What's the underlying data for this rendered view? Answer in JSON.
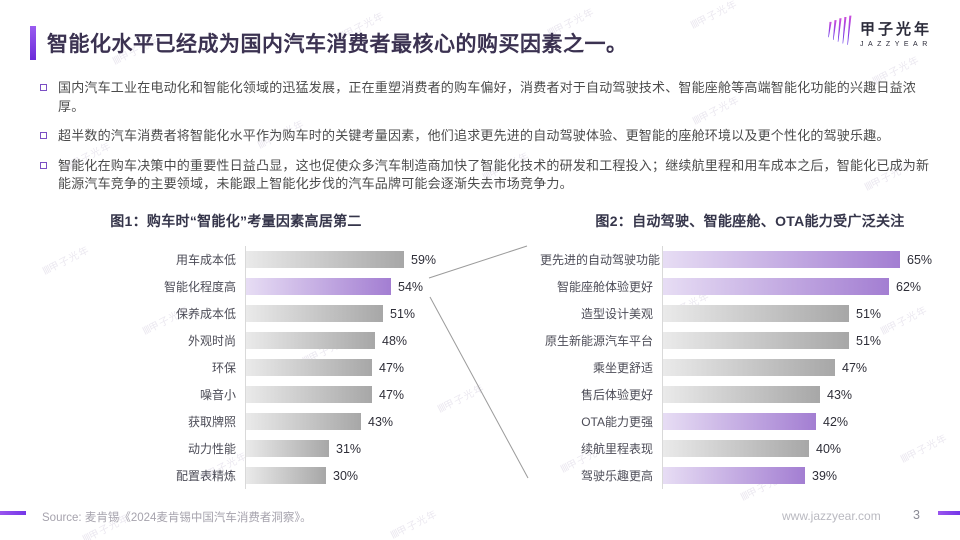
{
  "page": {
    "title": "智能化水平已经成为国内汽车消费者最核心的购买因素之一。"
  },
  "logo": {
    "name": "甲子光年",
    "subtitle": "JAZZYEAR",
    "icon": "jazzyear-spikes-icon"
  },
  "bullets": [
    "国内汽车工业在电动化和智能化领域的迅猛发展，正在重塑消费者的购车偏好，消费者对于自动驾驶技术、智能座舱等高端智能化功能的兴趣日益浓厚。",
    "超半数的汽车消费者将智能化水平作为购车时的关键考量因素，他们追求更先进的自动驾驶体验、更智能的座舱环境以及更个性化的驾驶乐趣。",
    "智能化在购车决策中的重要性日益凸显，这也促使众多汽车制造商加快了智能化技术的研发和工程投入；继续航里程和用车成本之后，智能化已成为新能源汽车竞争的主要领域，未能跟上智能化步伐的汽车品牌可能会逐渐失去市场竞争力。"
  ],
  "chart_data": [
    {
      "type": "bar",
      "orientation": "horizontal",
      "title": "图1：购车时“智能化”考量因素高居第二",
      "categories": [
        "用车成本低",
        "智能化程度高",
        "保养成本低",
        "外观时尚",
        "环保",
        "噪音小",
        "获取牌照",
        "动力性能",
        "配置表精炼"
      ],
      "values": [
        59,
        54,
        51,
        48,
        47,
        47,
        43,
        31,
        30
      ],
      "unit": "%",
      "highlight_indices": [
        1
      ],
      "xlim": [
        0,
        65
      ],
      "grid": false,
      "value_labels": true
    },
    {
      "type": "bar",
      "orientation": "horizontal",
      "title": "图2：自动驾驶、智能座舱、OTA能力受广泛关注",
      "categories": [
        "更先进的自动驾驶功能",
        "智能座舱体验更好",
        "造型设计美观",
        "原生新能源汽车平台",
        "乘坐更舒适",
        "售后体验更好",
        "OTA能力更强",
        "续航里程表现",
        "驾驶乐趣更高"
      ],
      "values": [
        65,
        62,
        51,
        51,
        47,
        43,
        42,
        40,
        39
      ],
      "unit": "%",
      "highlight_indices": [
        0,
        1,
        6,
        8
      ],
      "xlim": [
        0,
        70
      ],
      "grid": false,
      "value_labels": true
    }
  ],
  "footer": {
    "source": "Source:  麦肯锡《2024麦肯锡中国汽车消费者洞察》。",
    "website": "www.jazzyear.com",
    "page_number": "3"
  },
  "watermark": {
    "text": "甲子光年"
  },
  "colors": {
    "accent_purple": "#7B3FE4",
    "bar_gray_start": "#EAEAEA",
    "bar_gray_end": "#A7A7A7",
    "bar_purple_start": "#E7DDF4",
    "bar_purple_end": "#A37ED2",
    "title_text": "#3B3251",
    "connector_line": "#9B9B9B"
  }
}
